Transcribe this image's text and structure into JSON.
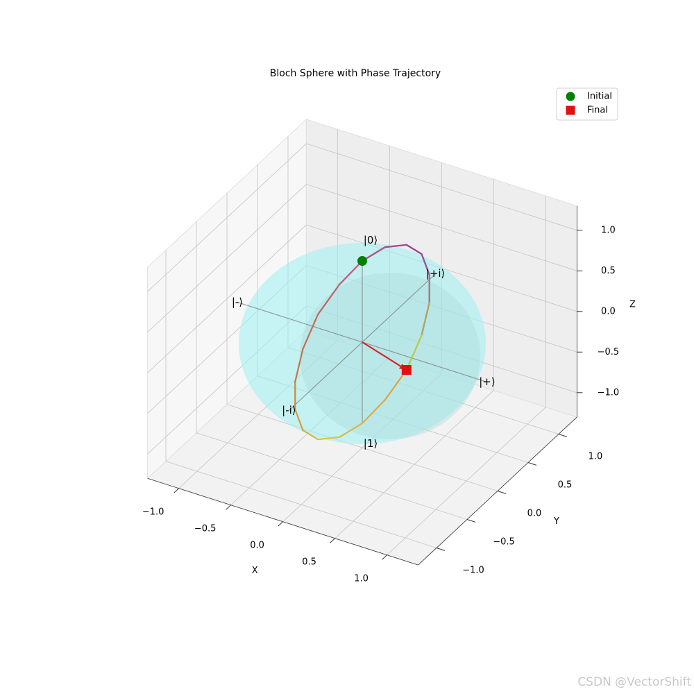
{
  "chart_data": {
    "type": "scatter3d",
    "title": "Bloch Sphere with Phase Trajectory",
    "xlabel": "X",
    "ylabel": "Y",
    "zlabel": "Z",
    "xlim": [
      -1.3,
      1.3
    ],
    "ylim": [
      -1.3,
      1.3
    ],
    "zlim": [
      -1.3,
      1.3
    ],
    "xticks": [
      {
        "value": -1,
        "label": "−1.0"
      },
      {
        "value": -0.5,
        "label": "−0.5"
      },
      {
        "value": 0,
        "label": "0.0"
      },
      {
        "value": 0.5,
        "label": "0.5"
      },
      {
        "value": 1,
        "label": "1.0"
      }
    ],
    "yticks": [
      {
        "value": -1,
        "label": "−1.0"
      },
      {
        "value": -0.5,
        "label": "−0.5"
      },
      {
        "value": 0,
        "label": "0.0"
      },
      {
        "value": 0.5,
        "label": "0.5"
      },
      {
        "value": 1,
        "label": "1.0"
      }
    ],
    "zticks": [
      {
        "value": -1,
        "label": "−1.0"
      },
      {
        "value": -0.5,
        "label": "−0.5"
      },
      {
        "value": 0,
        "label": "0.0"
      },
      {
        "value": 0.5,
        "label": "0.5"
      },
      {
        "value": 1,
        "label": "1.0"
      }
    ],
    "grid": true,
    "legend": "upper right",
    "series": [
      {
        "name": "Initial",
        "color": "#008000",
        "marker": "circle",
        "x": [
          0
        ],
        "y": [
          0
        ],
        "z": [
          1
        ]
      },
      {
        "name": "Final",
        "color": "#e01010",
        "marker": "square",
        "x": [
          0.05
        ],
        "y": [
          0.64
        ],
        "z": [
          -0.77
        ]
      }
    ],
    "trajectory": {
      "colormap": [
        "#c2567a",
        "#8e44a0",
        "#e0a040",
        "#d8c840",
        "#c9783e",
        "#c2567a",
        "#8e44a0",
        "#b8d04a"
      ],
      "x": [
        0,
        0.02,
        0.05,
        0.06,
        0.07,
        0.07,
        0.06,
        0.05,
        0.02,
        0,
        -0.02,
        -0.05,
        -0.06,
        -0.07,
        -0.07,
        -0.06,
        -0.05,
        -0.02,
        0,
        0.02,
        0.05,
        0.06,
        0.07,
        0.07,
        0.06,
        0.05
      ],
      "y": [
        0,
        0.34,
        0.64,
        0.87,
        0.98,
        0.98,
        0.87,
        0.64,
        0.34,
        0,
        -0.34,
        -0.64,
        -0.87,
        -0.98,
        -0.98,
        -0.87,
        -0.64,
        -0.34,
        0,
        0.34,
        0.64,
        0.87,
        0.98,
        0.98,
        0.87,
        0.64
      ],
      "z": [
        1,
        0.94,
        0.77,
        0.5,
        0.17,
        -0.17,
        -0.5,
        -0.77,
        -0.94,
        -1,
        -0.94,
        -0.77,
        -0.5,
        -0.17,
        0.17,
        0.5,
        0.77,
        0.94,
        1,
        0.94,
        0.77,
        0.5,
        0.17,
        -0.17,
        -0.5,
        -0.77
      ]
    },
    "state_labels": [
      {
        "label": "|0⟩",
        "x": 0,
        "y": 0,
        "z": 1.2
      },
      {
        "label": "|1⟩",
        "x": 0,
        "y": 0,
        "z": -1.2
      },
      {
        "label": "|+⟩",
        "x": 1.2,
        "y": 0,
        "z": 0
      },
      {
        "label": "|-⟩",
        "x": -1.2,
        "y": 0,
        "z": 0
      },
      {
        "label": "|+i⟩",
        "x": 0,
        "y": 1.2,
        "z": 0
      },
      {
        "label": "|-i⟩",
        "x": 0,
        "y": -1.2,
        "z": 0
      }
    ]
  },
  "watermark": "CSDN @VectorShift"
}
